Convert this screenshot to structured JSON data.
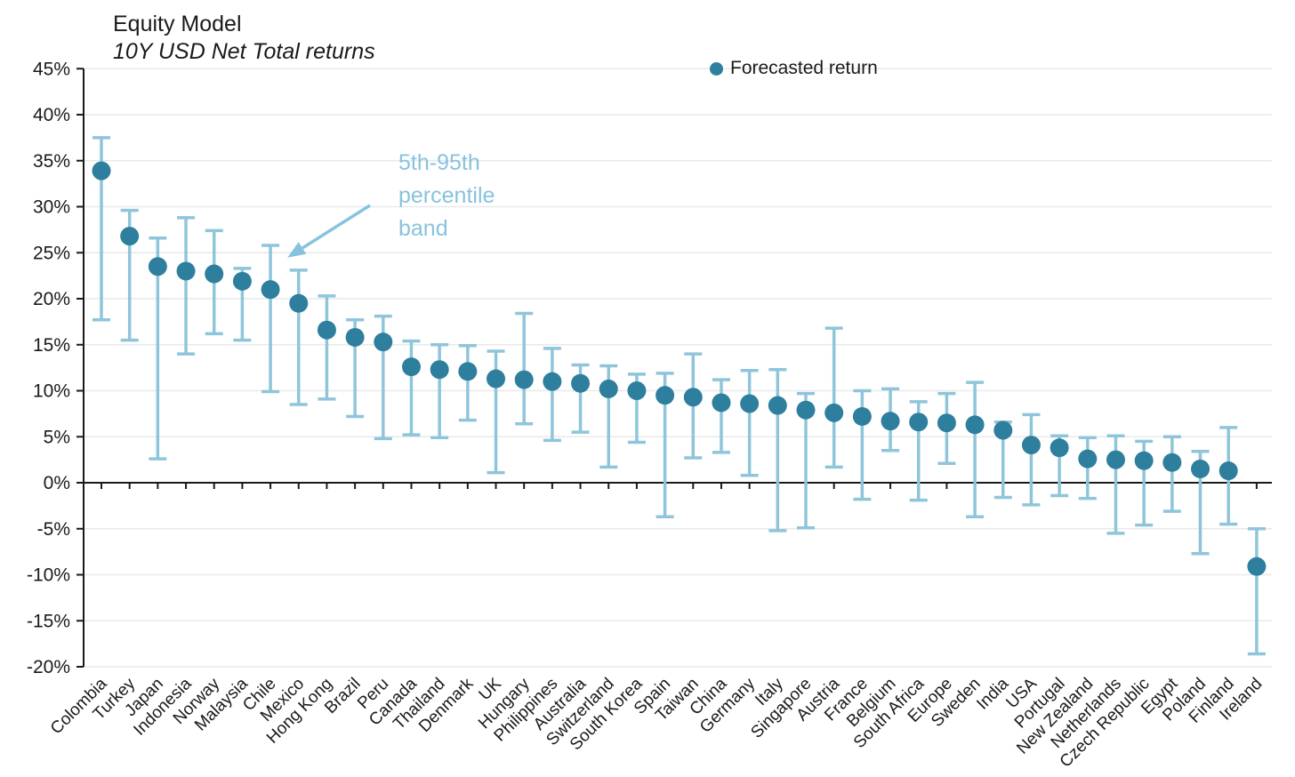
{
  "header": {
    "title": "Equity Model",
    "subtitle": "10Y USD Net Total returns"
  },
  "legend": {
    "label": "Forecasted return"
  },
  "annotation": {
    "lines": [
      "5th-95th",
      "percentile",
      "band"
    ]
  },
  "colors": {
    "marker": "#2E7F9E",
    "band": "#8FC5DB",
    "annotation_text": "#87C3DE",
    "axis": "#1A1A1A",
    "grid": "#E9E9E9",
    "text": "#1A1A1A"
  },
  "chart_data": {
    "type": "scatter",
    "title": "Equity Model",
    "subtitle": "10Y USD Net Total returns",
    "xlabel": "",
    "ylabel": "",
    "ylim": [
      -20,
      45
    ],
    "yticks": [
      45,
      40,
      35,
      30,
      25,
      20,
      15,
      10,
      5,
      0,
      -5,
      -10,
      -15,
      -20
    ],
    "tick_suffix": "%",
    "grid": "horizontal",
    "legend_position": "top-center",
    "categories": [
      "Colombia",
      "Turkey",
      "Japan",
      "Indonesia",
      "Norway",
      "Malaysia",
      "Chile",
      "Mexico",
      "Hong Kong",
      "Brazil",
      "Peru",
      "Canada",
      "Thailand",
      "Denmark",
      "UK",
      "Hungary",
      "Philippines",
      "Australia",
      "Switzerland",
      "South Korea",
      "Spain",
      "Taiwan",
      "China",
      "Germany",
      "Italy",
      "Singapore",
      "Austria",
      "France",
      "Belgium",
      "South Africa",
      "Europe",
      "Sweden",
      "India",
      "USA",
      "Portugal",
      "New Zealand",
      "Netherlands",
      "Czech Republic",
      "Egypt",
      "Poland",
      "Finland",
      "Ireland"
    ],
    "series": [
      {
        "name": "Forecasted return",
        "type": "point",
        "values": [
          33.9,
          26.8,
          23.5,
          23.0,
          22.7,
          21.9,
          21.0,
          19.5,
          16.6,
          15.8,
          15.3,
          12.6,
          12.3,
          12.1,
          11.3,
          11.2,
          11.0,
          10.8,
          10.2,
          10.0,
          9.5,
          9.3,
          8.7,
          8.6,
          8.4,
          7.9,
          7.6,
          7.2,
          6.7,
          6.6,
          6.5,
          6.3,
          5.7,
          4.1,
          3.8,
          2.6,
          2.5,
          2.4,
          2.2,
          1.5,
          1.3,
          -9.1
        ]
      },
      {
        "name": "5th-95th percentile band",
        "type": "errorbar",
        "high": [
          37.5,
          29.6,
          26.6,
          28.8,
          27.4,
          23.3,
          25.8,
          23.1,
          20.3,
          17.7,
          18.1,
          15.4,
          15.0,
          14.9,
          14.3,
          18.4,
          14.6,
          12.8,
          12.7,
          11.8,
          11.9,
          14.0,
          11.2,
          12.2,
          12.3,
          9.7,
          16.8,
          10.0,
          10.2,
          8.8,
          9.7,
          10.9,
          6.6,
          7.4,
          5.1,
          4.9,
          5.1,
          4.5,
          5.0,
          3.4,
          6.0,
          -5.0
        ],
        "low": [
          17.7,
          15.5,
          2.6,
          14.0,
          16.2,
          15.5,
          9.9,
          8.5,
          9.1,
          7.2,
          4.8,
          5.2,
          4.9,
          6.8,
          1.1,
          6.4,
          4.6,
          5.5,
          1.7,
          4.4,
          -3.7,
          2.7,
          3.3,
          0.8,
          -5.2,
          -4.9,
          1.7,
          -1.8,
          3.5,
          -1.9,
          2.1,
          -3.7,
          -1.6,
          -2.4,
          -1.4,
          -1.7,
          -5.5,
          -4.6,
          -3.1,
          -7.7,
          -4.5,
          -18.6
        ]
      }
    ]
  }
}
